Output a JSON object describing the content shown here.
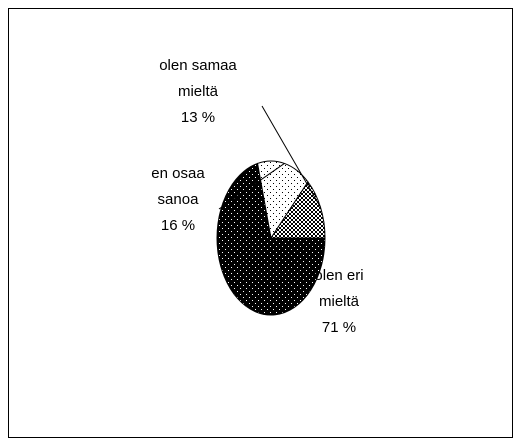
{
  "chart_data": {
    "type": "pie",
    "slices": [
      {
        "label": "olen eri mieltä",
        "lines": [
          "olen eri",
          "mieltä",
          "71 %"
        ],
        "value": 71,
        "pattern": "dark-dots"
      },
      {
        "label": "en osaa sanoa",
        "lines": [
          "en osaa",
          "sanoa",
          "16 %"
        ],
        "value": 16,
        "pattern": "light-dots"
      },
      {
        "label": "olen samaa mieltä",
        "lines": [
          "olen samaa",
          "mieltä",
          "13 %"
        ],
        "value": 13,
        "pattern": "checker"
      }
    ],
    "legend": "none",
    "colors": {
      "dark": "#000000",
      "light": "#ffffff"
    }
  }
}
